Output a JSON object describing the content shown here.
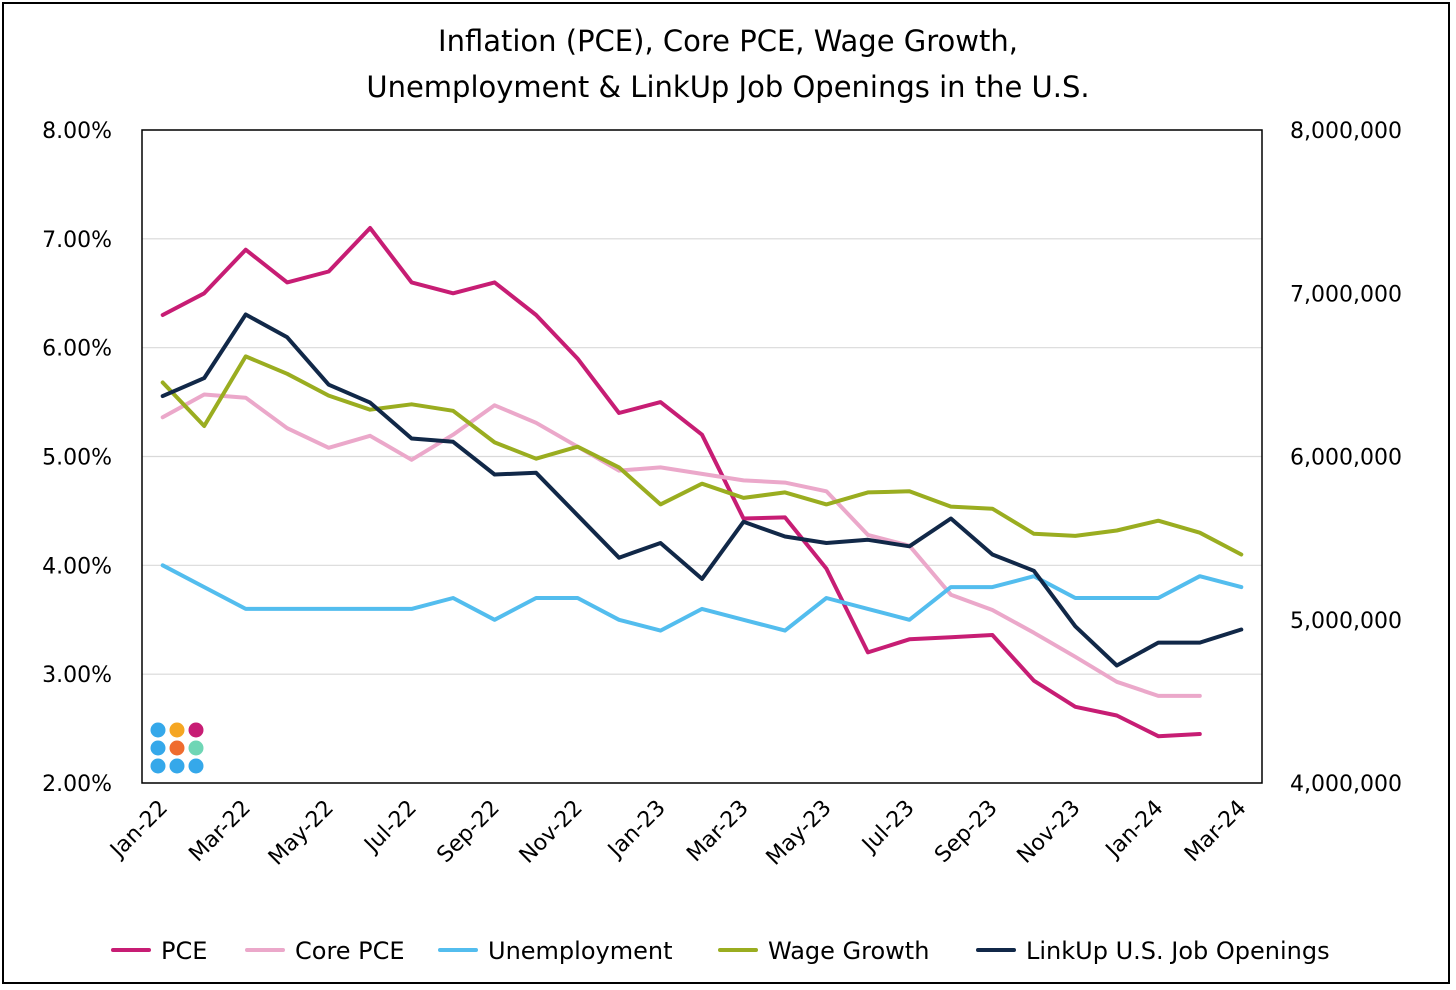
{
  "chart_data": {
    "type": "line",
    "title": "Inflation (PCE), Core PCE, Wage Growth,",
    "subtitle": "Unemployment & LinkUp Job Openings in the U.S.",
    "x": [
      "Jan-22",
      "Feb-22",
      "Mar-22",
      "Apr-22",
      "May-22",
      "Jun-22",
      "Jul-22",
      "Aug-22",
      "Sep-22",
      "Oct-22",
      "Nov-22",
      "Dec-22",
      "Jan-23",
      "Feb-23",
      "Mar-23",
      "Apr-23",
      "May-23",
      "Jun-23",
      "Jul-23",
      "Aug-23",
      "Sep-23",
      "Oct-23",
      "Nov-23",
      "Dec-23",
      "Jan-24",
      "Feb-24",
      "Mar-24"
    ],
    "x_tick_labels": [
      "Jan-22",
      "Mar-22",
      "May-22",
      "Jul-22",
      "Sep-22",
      "Nov-22",
      "Jan-23",
      "Mar-23",
      "May-23",
      "Jul-23",
      "Sep-23",
      "Nov-23",
      "Jan-24",
      "Mar-24"
    ],
    "y_left_ticks": [
      "2.00%",
      "3.00%",
      "4.00%",
      "5.00%",
      "6.00%",
      "7.00%",
      "8.00%"
    ],
    "y_right_ticks": [
      "4,000,000",
      "5,000,000",
      "6,000,000",
      "7,000,000",
      "8,000,000"
    ],
    "ylim_left": [
      2,
      8
    ],
    "ylim_right": [
      4000000,
      8000000
    ],
    "grid": "horizontal",
    "legend_position": "bottom",
    "series": [
      {
        "name": "PCE",
        "axis": "left",
        "color": "#c71d74",
        "values": [
          6.3,
          6.5,
          6.9,
          6.6,
          6.7,
          7.1,
          6.6,
          6.5,
          6.6,
          6.3,
          5.9,
          5.4,
          5.5,
          5.2,
          4.43,
          4.44,
          3.97,
          3.2,
          3.32,
          3.34,
          3.36,
          2.94,
          2.7,
          2.62,
          2.43,
          2.45,
          null
        ]
      },
      {
        "name": "Core PCE",
        "axis": "left",
        "color": "#eba8ca",
        "values": [
          5.36,
          5.57,
          5.54,
          5.26,
          5.08,
          5.19,
          4.97,
          5.2,
          5.47,
          5.31,
          5.09,
          4.87,
          4.9,
          4.84,
          4.78,
          4.76,
          4.68,
          4.28,
          4.18,
          3.73,
          3.59,
          3.38,
          3.16,
          2.93,
          2.8,
          2.8,
          null
        ]
      },
      {
        "name": "Unemployment",
        "axis": "left",
        "color": "#53bdee",
        "values": [
          4.0,
          3.8,
          3.6,
          3.6,
          3.6,
          3.6,
          3.6,
          3.7,
          3.5,
          3.7,
          3.7,
          3.5,
          3.4,
          3.6,
          3.5,
          3.4,
          3.7,
          3.6,
          3.5,
          3.8,
          3.8,
          3.9,
          3.7,
          3.7,
          3.7,
          3.9,
          3.8
        ]
      },
      {
        "name": "Wage Growth",
        "axis": "left",
        "color": "#9aad20",
        "values": [
          5.68,
          5.28,
          5.92,
          5.76,
          5.56,
          5.43,
          5.48,
          5.42,
          5.13,
          4.98,
          5.09,
          4.9,
          4.56,
          4.75,
          4.62,
          4.67,
          4.56,
          4.67,
          4.68,
          4.54,
          4.52,
          4.29,
          4.27,
          4.32,
          4.41,
          4.3,
          4.1
        ]
      },
      {
        "name": "LinkUp U.S. Job Openings",
        "axis": "right",
        "color": "#112848",
        "values": [
          6370000,
          6480000,
          6870000,
          6730000,
          6440000,
          6330000,
          6110000,
          6090000,
          5890000,
          5900000,
          5640000,
          5380000,
          5470000,
          5250000,
          5600000,
          5510000,
          5470000,
          5490000,
          5450000,
          5620000,
          5400000,
          5300000,
          4960000,
          4720000,
          4860000,
          4860000,
          4940000
        ]
      }
    ],
    "logo": {
      "name": "dot-grid-logo",
      "colors": [
        "#35a8ea",
        "#f5a623",
        "#c71d74",
        "#35a8ea",
        "#ef6c2f",
        "#6fd6b5",
        "#35a8ea",
        "#35a8ea",
        "#35a8ea"
      ]
    }
  }
}
